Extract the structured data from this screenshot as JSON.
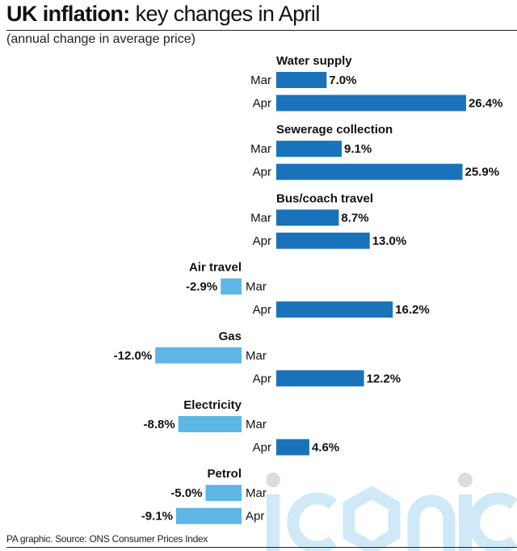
{
  "title_bold": "UK inflation:",
  "title_rest": " key changes in April",
  "subtitle": "(annual change in average price)",
  "source": "PA graphic. Source: ONS Consumer Prices Index",
  "watermark": "iconic",
  "colors": {
    "positive": "#1a72bb",
    "negative": "#5db6e3",
    "watermark": "#cfe9f6"
  },
  "chart_data": {
    "type": "bar",
    "orientation": "horizontal",
    "unit": "%",
    "title": "UK inflation: key changes in April",
    "subtitle": "(annual change in average price)",
    "categories": [
      "Water supply",
      "Sewerage collection",
      "Bus/coach travel",
      "Air travel",
      "Gas",
      "Electricity",
      "Petrol"
    ],
    "series": [
      {
        "name": "Mar",
        "values": [
          7.0,
          9.1,
          8.7,
          -2.9,
          -12.0,
          -8.8,
          -5.0
        ],
        "labels": [
          "7.0%",
          "9.1%",
          "8.7%",
          "-2.9%",
          "-12.0%",
          "-8.8%",
          "-5.0%"
        ]
      },
      {
        "name": "Apr",
        "values": [
          26.4,
          25.9,
          13.0,
          16.2,
          12.2,
          4.6,
          -9.1
        ],
        "labels": [
          "26.4%",
          "25.9%",
          "13.0%",
          "16.2%",
          "12.2%",
          "4.6%",
          "-9.1%"
        ]
      }
    ],
    "grid": false,
    "legend": "none"
  }
}
